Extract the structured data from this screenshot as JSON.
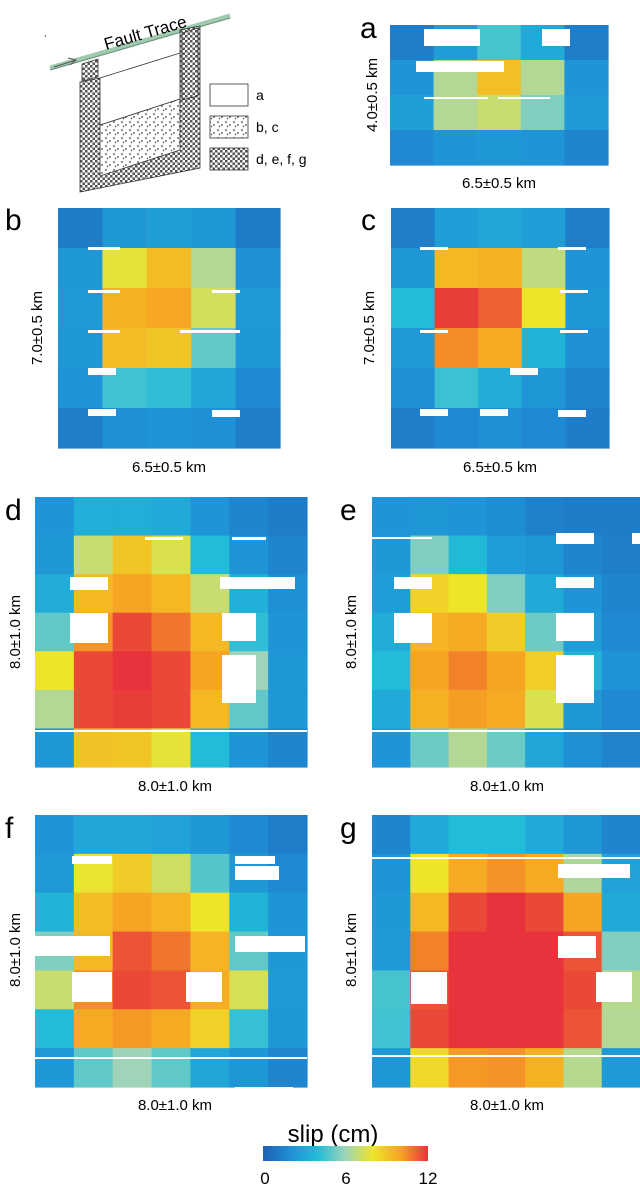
{
  "figure": {
    "schematic": {
      "fault_trace_label": "Fault Trace",
      "legend": [
        {
          "pattern": "white",
          "label": "a"
        },
        {
          "pattern": "dots",
          "label": "b, c"
        },
        {
          "pattern": "checker",
          "label": "d, e, f, g"
        }
      ]
    },
    "colorbar": {
      "title": "slip (cm)",
      "ticks": [
        "0",
        "6",
        "12"
      ],
      "range": [
        0,
        12
      ],
      "colors": [
        "#1e5fb4",
        "#1f8fd6",
        "#22bcd8",
        "#9fd4b8",
        "#eee52a",
        "#f6a423",
        "#e8323c"
      ]
    },
    "colors": {
      "low": "#1f66b9",
      "high": "#e2343d",
      "hole": "#ffffff",
      "fault_line": "#9fcab0"
    }
  },
  "chart_data": [
    {
      "type": "heatmap",
      "label": "a",
      "xlabel": "6.5±0.5 km",
      "ylabel": "4.0±0.5 km",
      "values": [
        [
          1.3,
          2.6,
          4.6,
          3.2,
          1.3
        ],
        [
          2.2,
          6.5,
          9.2,
          6.5,
          2.2
        ],
        [
          2.7,
          6.5,
          7.0,
          5.5,
          2.5
        ],
        [
          1.8,
          2.2,
          2.4,
          2.2,
          1.6
        ]
      ]
    },
    {
      "type": "heatmap",
      "label": "b",
      "xlabel": "6.5±0.5 km",
      "ylabel": "7.0±0.5 km",
      "values": [
        [
          1.2,
          2.4,
          2.7,
          2.4,
          1.2
        ],
        [
          2.3,
          7.8,
          9.3,
          6.5,
          2.0
        ],
        [
          2.5,
          9.6,
          9.9,
          7.3,
          2.5
        ],
        [
          2.3,
          9.3,
          9.0,
          5.0,
          2.3
        ],
        [
          2.2,
          4.5,
          4.2,
          3.0,
          1.8
        ],
        [
          1.3,
          2.0,
          2.2,
          2.0,
          1.3
        ]
      ]
    },
    {
      "type": "heatmap",
      "label": "c",
      "xlabel": "6.5±0.5 km",
      "ylabel": "7.0±0.5 km",
      "values": [
        [
          1.3,
          2.6,
          3.0,
          2.6,
          1.3
        ],
        [
          2.3,
          9.4,
          9.6,
          6.8,
          2.2
        ],
        [
          4.0,
          11.8,
          11.2,
          8.0,
          2.3
        ],
        [
          2.5,
          10.4,
          9.8,
          3.6,
          2.0
        ],
        [
          2.0,
          4.4,
          3.3,
          2.3,
          1.6
        ],
        [
          1.3,
          1.8,
          2.0,
          1.8,
          1.2
        ]
      ]
    },
    {
      "type": "heatmap",
      "label": "d",
      "xlabel": "8.0±1.0 km",
      "ylabel": "8.0±1.0 km",
      "values": [
        [
          2.2,
          3.4,
          3.4,
          3.2,
          2.2,
          1.6,
          1.2
        ],
        [
          2.4,
          7.0,
          9.0,
          7.5,
          4.0,
          2.2,
          1.6
        ],
        [
          3.3,
          9.4,
          10.0,
          9.4,
          7.0,
          3.5,
          2.0
        ],
        [
          5.0,
          10.3,
          11.6,
          10.8,
          9.4,
          4.2,
          2.2
        ],
        [
          8.0,
          11.6,
          12.0,
          11.6,
          10.0,
          6.0,
          2.3
        ],
        [
          6.5,
          11.6,
          11.8,
          11.6,
          9.4,
          5.0,
          2.3
        ],
        [
          2.3,
          9.1,
          9.0,
          7.8,
          4.0,
          2.2,
          1.6
        ]
      ]
    },
    {
      "type": "heatmap",
      "label": "e",
      "xlabel": "8.0±1.0 km",
      "ylabel": "8.0±1.0 km",
      "values": [
        [
          2.2,
          2.3,
          2.2,
          1.9,
          1.4,
          1.2,
          1.2
        ],
        [
          2.4,
          5.5,
          3.8,
          2.6,
          2.3,
          1.6,
          1.3
        ],
        [
          2.6,
          8.6,
          8.0,
          5.5,
          3.2,
          2.2,
          1.6
        ],
        [
          3.3,
          9.5,
          9.8,
          8.8,
          5.2,
          2.6,
          1.8
        ],
        [
          4.0,
          10.0,
          10.6,
          10.0,
          8.7,
          3.6,
          2.2
        ],
        [
          3.2,
          9.6,
          10.1,
          9.8,
          7.5,
          2.4,
          1.8
        ],
        [
          2.2,
          5.2,
          6.5,
          5.2,
          3.0,
          2.0,
          1.5
        ]
      ]
    },
    {
      "type": "heatmap",
      "label": "f",
      "xlabel": "8.0±1.0 km",
      "ylabel": "8.0±1.0 km",
      "values": [
        [
          2.2,
          3.0,
          3.0,
          2.8,
          2.3,
          1.8,
          1.3
        ],
        [
          2.5,
          7.9,
          8.8,
          7.2,
          4.8,
          2.4,
          1.8
        ],
        [
          3.6,
          9.3,
          10.0,
          9.5,
          8.0,
          3.6,
          2.2
        ],
        [
          5.5,
          9.4,
          11.4,
          10.8,
          9.5,
          5.0,
          2.3
        ],
        [
          7.0,
          10.4,
          11.6,
          11.4,
          9.7,
          7.4,
          2.5
        ],
        [
          4.0,
          9.8,
          10.2,
          9.8,
          8.6,
          4.3,
          2.3
        ],
        [
          2.4,
          5.0,
          6.0,
          5.0,
          3.0,
          2.3,
          1.6
        ]
      ]
    },
    {
      "type": "heatmap",
      "label": "g",
      "xlabel": "8.0±1.0 km",
      "ylabel": "8.0±1.0 km",
      "values": [
        [
          1.6,
          3.2,
          4.0,
          4.0,
          3.2,
          2.3,
          1.6
        ],
        [
          2.2,
          8.0,
          9.8,
          10.3,
          9.8,
          6.4,
          2.8
        ],
        [
          2.4,
          9.4,
          11.6,
          12.0,
          11.6,
          10.0,
          3.2
        ],
        [
          2.5,
          10.6,
          12.0,
          12.0,
          12.0,
          11.4,
          5.5
        ],
        [
          4.6,
          11.4,
          12.0,
          12.0,
          12.0,
          11.6,
          6.6
        ],
        [
          4.5,
          11.6,
          12.0,
          12.0,
          12.0,
          11.4,
          6.5
        ],
        [
          2.3,
          8.4,
          10.2,
          10.3,
          9.6,
          6.6,
          2.5
        ]
      ]
    }
  ]
}
